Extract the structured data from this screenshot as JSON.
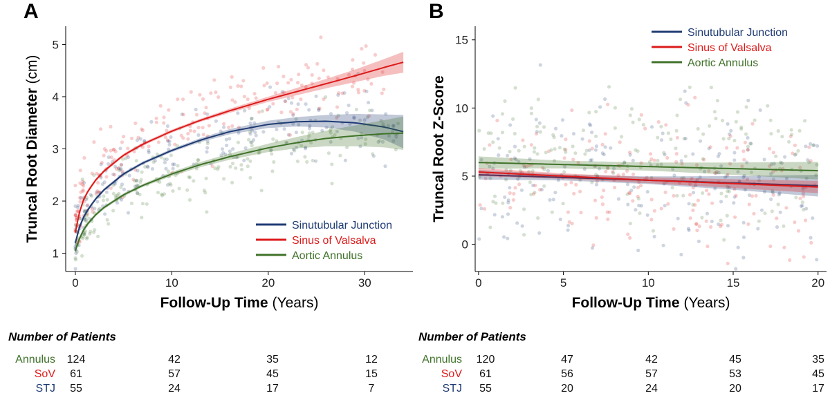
{
  "colors": {
    "stj": "#1f3b73",
    "sov": "#dd1a1a",
    "annulus": "#3f7229",
    "axis": "#000000",
    "panel_bg": "#ffffff",
    "plot_bg": "#ffffff"
  },
  "chart_data": [
    {
      "type": "line",
      "panel": "A",
      "title": "",
      "xlabel_bold": "Follow-Up Time",
      "xlabel_units": "(Years)",
      "ylabel_bold": "Truncal Root Diameter",
      "ylabel_units": "(cm)",
      "xlim": [
        -1,
        35
      ],
      "ylim": [
        0.65,
        5.35
      ],
      "xticks": [
        0,
        10,
        20,
        30
      ],
      "yticks": [
        1,
        2,
        3,
        4,
        5
      ],
      "series": [
        {
          "key": "stj",
          "name": "Sinutubular Junction",
          "x": [
            0,
            0.5,
            1,
            2,
            3,
            5,
            7,
            10,
            13,
            16,
            20,
            23,
            26,
            29,
            32,
            34
          ],
          "y": [
            1.2,
            1.55,
            1.75,
            2.02,
            2.22,
            2.52,
            2.73,
            2.97,
            3.17,
            3.33,
            3.47,
            3.52,
            3.53,
            3.5,
            3.42,
            3.33
          ],
          "ci_half": [
            0.06,
            0.05,
            0.04,
            0.03,
            0.03,
            0.03,
            0.03,
            0.03,
            0.04,
            0.05,
            0.07,
            0.09,
            0.12,
            0.17,
            0.24,
            0.32
          ]
        },
        {
          "key": "sov",
          "name": "Sinus of Valsalva",
          "x": [
            0,
            0.5,
            1,
            2,
            3,
            5,
            7,
            10,
            13,
            16,
            20,
            23,
            26,
            29,
            32,
            34
          ],
          "y": [
            1.4,
            1.85,
            2.1,
            2.38,
            2.58,
            2.88,
            3.09,
            3.34,
            3.55,
            3.73,
            3.95,
            4.1,
            4.25,
            4.4,
            4.56,
            4.66
          ],
          "ci_half": [
            0.05,
            0.04,
            0.04,
            0.03,
            0.03,
            0.03,
            0.03,
            0.03,
            0.03,
            0.04,
            0.05,
            0.07,
            0.09,
            0.12,
            0.16,
            0.2
          ]
        },
        {
          "key": "annulus",
          "name": "Aortic Annulus",
          "x": [
            0,
            0.5,
            1,
            2,
            3,
            5,
            7,
            10,
            13,
            16,
            20,
            23,
            26,
            29,
            32,
            34
          ],
          "y": [
            1.05,
            1.32,
            1.5,
            1.72,
            1.88,
            2.12,
            2.3,
            2.52,
            2.7,
            2.85,
            3.02,
            3.12,
            3.2,
            3.25,
            3.29,
            3.3
          ],
          "ci_half": [
            0.05,
            0.04,
            0.04,
            0.03,
            0.03,
            0.03,
            0.03,
            0.04,
            0.05,
            0.06,
            0.08,
            0.11,
            0.15,
            0.2,
            0.26,
            0.32
          ]
        }
      ],
      "legend": [
        "Sinutubular Junction",
        "Sinus of Valsalva",
        "Aortic Annulus"
      ],
      "legend_position": "bottom-right"
    },
    {
      "type": "line",
      "panel": "B",
      "title": "",
      "xlabel_bold": "Follow-Up Time",
      "xlabel_units": "(Years)",
      "ylabel_bold": "Truncal Root Z-Score",
      "ylabel_units": "",
      "xlim": [
        -0.2,
        20.5
      ],
      "ylim": [
        -2,
        16
      ],
      "xticks": [
        0,
        5,
        10,
        15,
        20
      ],
      "yticks": [
        0,
        5,
        10,
        15
      ],
      "series": [
        {
          "key": "stj",
          "name": "Sinutubular Junction",
          "x": [
            0,
            5,
            10,
            15,
            20
          ],
          "y": [
            5.1,
            4.9,
            4.7,
            4.5,
            4.3
          ],
          "ci_half": [
            0.35,
            0.22,
            0.28,
            0.5,
            0.8
          ]
        },
        {
          "key": "sov",
          "name": "Sinus of Valsalva",
          "x": [
            0,
            5,
            10,
            15,
            20
          ],
          "y": [
            5.3,
            5.0,
            4.7,
            4.45,
            4.2
          ],
          "ci_half": [
            0.3,
            0.2,
            0.22,
            0.32,
            0.45
          ]
        },
        {
          "key": "annulus",
          "name": "Aortic Annulus",
          "x": [
            0,
            5,
            10,
            15,
            20
          ],
          "y": [
            6.0,
            5.85,
            5.7,
            5.55,
            5.4
          ],
          "ci_half": [
            0.45,
            0.28,
            0.3,
            0.45,
            0.65
          ]
        }
      ],
      "legend": [
        "Sinutubular Junction",
        "Sinus of Valsalva",
        "Aortic Annulus"
      ],
      "legend_position": "top-right"
    }
  ],
  "panels": [
    {
      "letter": "A",
      "table": {
        "title": "Number of Patients",
        "rows": [
          {
            "key": "annulus",
            "label": "Annulus",
            "values": [
              "124",
              "42",
              "35",
              "12"
            ]
          },
          {
            "key": "sov",
            "label": "SoV",
            "values": [
              "61",
              "57",
              "45",
              "15"
            ]
          },
          {
            "key": "stj",
            "label": "STJ",
            "values": [
              "55",
              "24",
              "17",
              "7"
            ]
          }
        ]
      }
    },
    {
      "letter": "B",
      "table": {
        "title": "Number of Patients",
        "rows": [
          {
            "key": "annulus",
            "label": "Annulus",
            "values": [
              "120",
              "47",
              "42",
              "45",
              "35"
            ]
          },
          {
            "key": "sov",
            "label": "SoV",
            "values": [
              "61",
              "56",
              "57",
              "53",
              "45"
            ]
          },
          {
            "key": "stj",
            "label": "STJ",
            "values": [
              "55",
              "20",
              "24",
              "20",
              "17"
            ]
          }
        ]
      }
    }
  ]
}
